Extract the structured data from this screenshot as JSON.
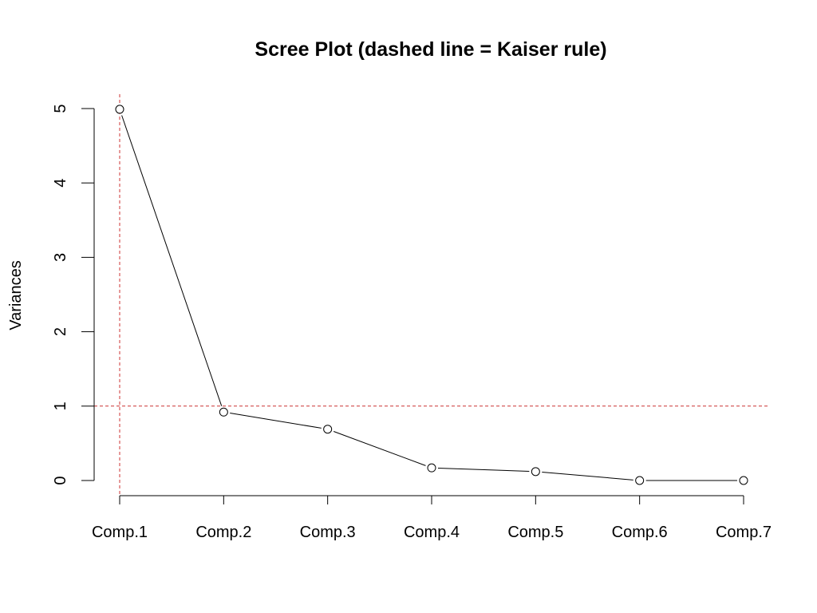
{
  "chart_data": {
    "type": "line",
    "title": "Scree Plot (dashed line = Kaiser rule)",
    "xlabel": "",
    "ylabel": "Variances",
    "categories": [
      "Comp.1",
      "Comp.2",
      "Comp.3",
      "Comp.4",
      "Comp.5",
      "Comp.6",
      "Comp.7"
    ],
    "values": [
      4.99,
      0.92,
      0.69,
      0.17,
      0.12,
      0.0,
      0.0
    ],
    "ylim": [
      0,
      5
    ],
    "y_ticks": [
      "0",
      "1",
      "2",
      "3",
      "4",
      "5"
    ],
    "grid": false,
    "legend": "none",
    "markers": "open-circle",
    "reference_lines": [
      {
        "orientation": "horizontal",
        "value": 1,
        "style": "dashed",
        "color": "#cc3333"
      },
      {
        "orientation": "vertical",
        "category": "Comp.1",
        "style": "dashed",
        "color": "#cc3333"
      }
    ]
  }
}
